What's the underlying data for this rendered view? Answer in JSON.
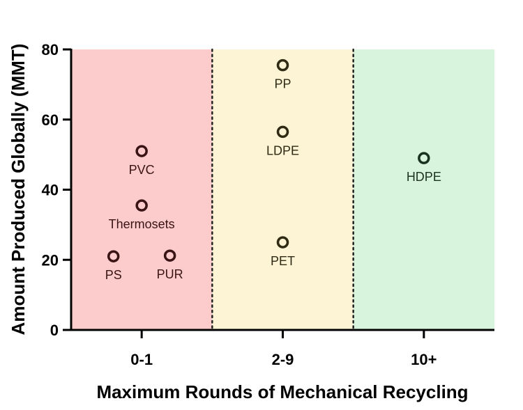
{
  "chart_data": {
    "type": "scatter",
    "xlabel": "Maximum Rounds of Mechanical Recycling",
    "ylabel": "Amount Produced Globally (MMT)",
    "ylim": [
      0,
      80
    ],
    "yticks": [
      0,
      20,
      40,
      60,
      80
    ],
    "categories": [
      "0-1",
      "2-9",
      "10+"
    ],
    "regions": [
      {
        "category": "0-1",
        "color": "#fccccc"
      },
      {
        "category": "2-9",
        "color": "#fdf3d5"
      },
      {
        "category": "10+",
        "color": "#d8f4dc"
      }
    ],
    "points": [
      {
        "label": "PVC",
        "category": "0-1",
        "offset": 0.0,
        "y": 51,
        "color": "#3a1414"
      },
      {
        "label": "Thermosets",
        "category": "0-1",
        "offset": 0.0,
        "y": 35.5,
        "color": "#3a1414"
      },
      {
        "label": "PS",
        "category": "0-1",
        "offset": -0.2,
        "y": 21,
        "color": "#3a1414"
      },
      {
        "label": "PUR",
        "category": "0-1",
        "offset": 0.2,
        "y": 21.2,
        "color": "#3a1414"
      },
      {
        "label": "PP",
        "category": "2-9",
        "offset": 0.0,
        "y": 75.5,
        "color": "#2e2a14"
      },
      {
        "label": "LDPE",
        "category": "2-9",
        "offset": 0.0,
        "y": 56.5,
        "color": "#2e2a14"
      },
      {
        "label": "PET",
        "category": "2-9",
        "offset": 0.0,
        "y": 25,
        "color": "#2e2a14"
      },
      {
        "label": "HDPE",
        "category": "10+",
        "offset": 0.0,
        "y": 49,
        "color": "#1a3320"
      }
    ]
  }
}
